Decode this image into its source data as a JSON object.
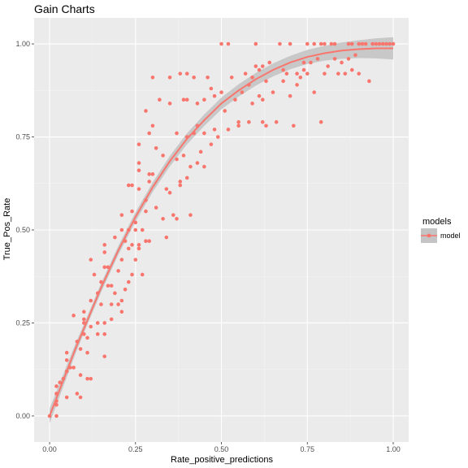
{
  "chart_data": {
    "type": "scatter",
    "title": "Gain Charts",
    "xlabel": "Rate_positive_predictions",
    "ylabel": "True_Pos_Rate",
    "xlim": [
      -0.045,
      1.045
    ],
    "ylim": [
      -0.07,
      1.07
    ],
    "x_ticks": [
      0.0,
      0.25,
      0.5,
      0.75,
      1.0
    ],
    "x_tick_labels": [
      "0.00",
      "0.25",
      "0.50",
      "0.75",
      "1.00"
    ],
    "y_ticks": [
      0.0,
      0.25,
      0.5,
      0.75,
      1.0
    ],
    "y_tick_labels": [
      "0.00",
      "0.25",
      "0.50",
      "0.75",
      "1.00"
    ],
    "grid": true,
    "panel_background": "#ebebeb",
    "legend": {
      "title": "models",
      "position": "right",
      "entries": [
        "model"
      ]
    },
    "series": [
      {
        "name": "model",
        "color": "#f8766d",
        "points": [
          [
            0.0,
            0.0
          ],
          [
            0.02,
            0.0
          ],
          [
            0.02,
            0.04
          ],
          [
            0.02,
            0.06
          ],
          [
            0.02,
            0.08
          ],
          [
            0.03,
            0.09
          ],
          [
            0.02,
            0.03
          ],
          [
            0.04,
            0.1
          ],
          [
            0.05,
            0.12
          ],
          [
            0.05,
            0.15
          ],
          [
            0.05,
            0.17
          ],
          [
            0.06,
            0.13
          ],
          [
            0.05,
            0.05
          ],
          [
            0.07,
            0.27
          ],
          [
            0.07,
            0.13
          ],
          [
            0.08,
            0.06
          ],
          [
            0.08,
            0.2
          ],
          [
            0.09,
            0.18
          ],
          [
            0.09,
            0.11
          ],
          [
            0.09,
            0.05
          ],
          [
            0.1,
            0.22
          ],
          [
            0.1,
            0.25
          ],
          [
            0.1,
            0.28
          ],
          [
            0.1,
            0.26
          ],
          [
            0.11,
            0.21
          ],
          [
            0.11,
            0.17
          ],
          [
            0.11,
            0.1
          ],
          [
            0.12,
            0.31
          ],
          [
            0.12,
            0.42
          ],
          [
            0.12,
            0.24
          ],
          [
            0.12,
            0.1
          ],
          [
            0.13,
            0.38
          ],
          [
            0.14,
            0.33
          ],
          [
            0.14,
            0.25
          ],
          [
            0.14,
            0.22
          ],
          [
            0.15,
            0.36
          ],
          [
            0.15,
            0.3
          ],
          [
            0.16,
            0.44
          ],
          [
            0.16,
            0.46
          ],
          [
            0.16,
            0.4
          ],
          [
            0.16,
            0.25
          ],
          [
            0.16,
            0.22
          ],
          [
            0.16,
            0.16
          ],
          [
            0.17,
            0.4
          ],
          [
            0.17,
            0.35
          ],
          [
            0.18,
            0.35
          ],
          [
            0.18,
            0.3
          ],
          [
            0.18,
            0.26
          ],
          [
            0.19,
            0.48
          ],
          [
            0.19,
            0.33
          ],
          [
            0.2,
            0.39
          ],
          [
            0.2,
            0.3
          ],
          [
            0.21,
            0.54
          ],
          [
            0.21,
            0.5
          ],
          [
            0.21,
            0.42
          ],
          [
            0.21,
            0.28
          ],
          [
            0.21,
            0.31
          ],
          [
            0.22,
            0.47
          ],
          [
            0.22,
            0.34
          ],
          [
            0.23,
            0.62
          ],
          [
            0.23,
            0.45
          ],
          [
            0.23,
            0.5
          ],
          [
            0.23,
            0.36
          ],
          [
            0.24,
            0.62
          ],
          [
            0.24,
            0.55
          ],
          [
            0.24,
            0.46
          ],
          [
            0.24,
            0.38
          ],
          [
            0.25,
            0.52
          ],
          [
            0.25,
            0.42
          ],
          [
            0.25,
            0.5
          ],
          [
            0.26,
            0.73
          ],
          [
            0.26,
            0.68
          ],
          [
            0.26,
            0.66
          ],
          [
            0.26,
            0.61
          ],
          [
            0.26,
            0.46
          ],
          [
            0.26,
            0.45
          ],
          [
            0.27,
            0.38
          ],
          [
            0.27,
            0.5
          ],
          [
            0.28,
            0.82
          ],
          [
            0.28,
            0.58
          ],
          [
            0.28,
            0.47
          ],
          [
            0.28,
            0.55
          ],
          [
            0.29,
            0.76
          ],
          [
            0.29,
            0.65
          ],
          [
            0.29,
            0.63
          ],
          [
            0.29,
            0.47
          ],
          [
            0.3,
            0.91
          ],
          [
            0.3,
            0.78
          ],
          [
            0.3,
            0.65
          ],
          [
            0.31,
            0.72
          ],
          [
            0.31,
            0.56
          ],
          [
            0.32,
            0.85
          ],
          [
            0.33,
            0.7
          ],
          [
            0.33,
            0.53
          ],
          [
            0.34,
            0.48
          ],
          [
            0.34,
            0.61
          ],
          [
            0.35,
            0.91
          ],
          [
            0.35,
            0.84
          ],
          [
            0.35,
            0.6
          ],
          [
            0.36,
            0.54
          ],
          [
            0.37,
            0.76
          ],
          [
            0.37,
            0.69
          ],
          [
            0.37,
            0.53
          ],
          [
            0.38,
            0.92
          ],
          [
            0.38,
            0.62
          ],
          [
            0.38,
            0.63
          ],
          [
            0.39,
            0.85
          ],
          [
            0.39,
            0.7
          ],
          [
            0.4,
            0.92
          ],
          [
            0.4,
            0.85
          ],
          [
            0.4,
            0.75
          ],
          [
            0.4,
            0.64
          ],
          [
            0.41,
            0.54
          ],
          [
            0.41,
            0.67
          ],
          [
            0.42,
            0.91
          ],
          [
            0.42,
            0.76
          ],
          [
            0.43,
            0.84
          ],
          [
            0.43,
            0.78
          ],
          [
            0.43,
            0.68
          ],
          [
            0.44,
            0.71
          ],
          [
            0.45,
            0.85
          ],
          [
            0.45,
            0.76
          ],
          [
            0.45,
            0.67
          ],
          [
            0.46,
            0.91
          ],
          [
            0.47,
            0.88
          ],
          [
            0.47,
            0.73
          ],
          [
            0.48,
            0.86
          ],
          [
            0.48,
            0.77
          ],
          [
            0.49,
            0.75
          ],
          [
            0.5,
            1.0
          ],
          [
            0.5,
            0.87
          ],
          [
            0.51,
            0.82
          ],
          [
            0.52,
            1.0
          ],
          [
            0.52,
            0.77
          ],
          [
            0.53,
            0.91
          ],
          [
            0.54,
            0.85
          ],
          [
            0.55,
            0.79
          ],
          [
            0.55,
            0.78
          ],
          [
            0.56,
            0.87
          ],
          [
            0.57,
            0.92
          ],
          [
            0.58,
            0.89
          ],
          [
            0.58,
            0.79
          ],
          [
            0.59,
            0.91
          ],
          [
            0.59,
            0.84
          ],
          [
            0.6,
            1.0
          ],
          [
            0.6,
            0.94
          ],
          [
            0.61,
            0.93
          ],
          [
            0.61,
            0.86
          ],
          [
            0.62,
            0.94
          ],
          [
            0.62,
            0.85
          ],
          [
            0.62,
            0.79
          ],
          [
            0.63,
            0.9
          ],
          [
            0.63,
            0.78
          ],
          [
            0.64,
            0.95
          ],
          [
            0.65,
            0.87
          ],
          [
            0.66,
            0.79
          ],
          [
            0.67,
            1.0
          ],
          [
            0.68,
            0.93
          ],
          [
            0.68,
            0.9
          ],
          [
            0.69,
            0.92
          ],
          [
            0.7,
            1.0
          ],
          [
            0.7,
            0.86
          ],
          [
            0.71,
            0.78
          ],
          [
            0.72,
            0.89
          ],
          [
            0.72,
            0.92
          ],
          [
            0.73,
            0.91
          ],
          [
            0.74,
            0.93
          ],
          [
            0.74,
            0.95
          ],
          [
            0.75,
            1.0
          ],
          [
            0.75,
            0.92
          ],
          [
            0.76,
            0.95
          ],
          [
            0.77,
            1.0
          ],
          [
            0.77,
            0.87
          ],
          [
            0.78,
            0.96
          ],
          [
            0.79,
            1.0
          ],
          [
            0.79,
            0.79
          ],
          [
            0.8,
            0.92
          ],
          [
            0.8,
            1.0
          ],
          [
            0.81,
            0.94
          ],
          [
            0.82,
            1.0
          ],
          [
            0.83,
            1.0
          ],
          [
            0.83,
            0.96
          ],
          [
            0.84,
            0.92
          ],
          [
            0.85,
            0.95
          ],
          [
            0.86,
            0.92
          ],
          [
            0.87,
            1.0
          ],
          [
            0.87,
            0.96
          ],
          [
            0.88,
            1.0
          ],
          [
            0.88,
            0.93
          ],
          [
            0.89,
            0.97
          ],
          [
            0.9,
            1.0
          ],
          [
            0.9,
            0.92
          ],
          [
            0.91,
            1.0
          ],
          [
            0.92,
            1.0
          ],
          [
            0.93,
            0.9
          ],
          [
            0.94,
            1.0
          ],
          [
            0.95,
            1.0
          ],
          [
            0.96,
            1.0
          ],
          [
            0.97,
            1.0
          ],
          [
            0.98,
            1.0
          ],
          [
            0.99,
            1.0
          ],
          [
            1.0,
            1.0
          ]
        ]
      }
    ],
    "smooth": {
      "color": "#f8766d",
      "band_color": "#c4c4c4",
      "curve": [
        [
          0.0,
          0.0
        ],
        [
          0.025,
          0.06
        ],
        [
          0.05,
          0.12
        ],
        [
          0.075,
          0.18
        ],
        [
          0.1,
          0.235
        ],
        [
          0.125,
          0.29
        ],
        [
          0.15,
          0.345
        ],
        [
          0.175,
          0.395
        ],
        [
          0.2,
          0.445
        ],
        [
          0.225,
          0.49
        ],
        [
          0.25,
          0.535
        ],
        [
          0.275,
          0.575
        ],
        [
          0.3,
          0.615
        ],
        [
          0.325,
          0.65
        ],
        [
          0.35,
          0.685
        ],
        [
          0.375,
          0.715
        ],
        [
          0.4,
          0.745
        ],
        [
          0.45,
          0.795
        ],
        [
          0.5,
          0.84
        ],
        [
          0.55,
          0.875
        ],
        [
          0.6,
          0.905
        ],
        [
          0.65,
          0.93
        ],
        [
          0.7,
          0.95
        ],
        [
          0.75,
          0.965
        ],
        [
          0.8,
          0.975
        ],
        [
          0.85,
          0.982
        ],
        [
          0.9,
          0.986
        ],
        [
          0.95,
          0.988
        ],
        [
          1.0,
          0.988
        ]
      ],
      "band_halfwidth": [
        [
          0.0,
          0.02
        ],
        [
          0.1,
          0.012
        ],
        [
          0.2,
          0.012
        ],
        [
          0.3,
          0.013
        ],
        [
          0.4,
          0.015
        ],
        [
          0.5,
          0.016
        ],
        [
          0.6,
          0.017
        ],
        [
          0.7,
          0.018
        ],
        [
          0.8,
          0.02
        ],
        [
          0.9,
          0.024
        ],
        [
          1.0,
          0.03
        ]
      ]
    }
  }
}
